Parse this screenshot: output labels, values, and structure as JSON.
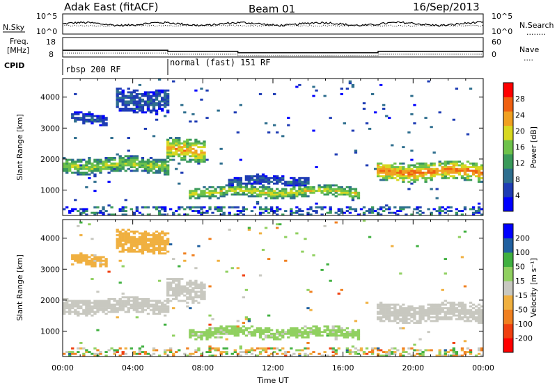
{
  "header": {
    "radar": "Adak East (fitACF)",
    "beam": "Beam 01",
    "date": "16/Sep/2013"
  },
  "noise_panel": {
    "left_label": "N.Sky",
    "right_label": "N.Search",
    "right_legend_line": "........",
    "left_ticks": [
      "10^5",
      "10^0"
    ],
    "right_ticks": [
      "10^5",
      "10^0"
    ]
  },
  "freq_panel": {
    "left_label_1": "Freq.",
    "left_label_2": "[MHz]",
    "left_ticks": [
      "18",
      "8"
    ],
    "right_label": "Nave",
    "right_legend_line": "....",
    "right_ticks": [
      "60",
      "0"
    ]
  },
  "cpid_panel": {
    "label": "CPID",
    "segments": [
      {
        "name": "rbsp 200 RF",
        "start_hour": 0,
        "end_hour": 6
      },
      {
        "name": "normal (fast) 151 RF",
        "start_hour": 6,
        "end_hour": 24
      }
    ]
  },
  "chart_data": [
    {
      "type": "heatmap",
      "parameter": "Power",
      "colorbar_label": "Power [dB]",
      "colorbar_ticks": [
        "28",
        "24",
        "20",
        "16",
        "12",
        "8",
        "4"
      ],
      "colorbar_range": [
        0,
        32
      ],
      "colorbar_colors": [
        "#0000ff",
        "#1e3cb4",
        "#2e6e8e",
        "#3a9a5a",
        "#6ec24a",
        "#d8d820",
        "#f0a020",
        "#f06010",
        "#ff0000"
      ],
      "ylabel": "Slant Range [km]",
      "yticks": [
        "4000",
        "3000",
        "2000",
        "1000"
      ],
      "ylim": [
        180,
        4600
      ],
      "xlim": [
        0,
        24
      ],
      "echo_regions": [
        {
          "t_start": 0.0,
          "t_end": 6.0,
          "r_center": 1800,
          "r_halfwidth": 200,
          "peak_db": 18
        },
        {
          "t_start": 6.0,
          "t_end": 8.2,
          "r_center": 2300,
          "r_halfwidth": 300,
          "peak_db": 24
        },
        {
          "t_start": 7.2,
          "t_end": 17.0,
          "r_center": 950,
          "r_halfwidth": 150,
          "peak_db": 20
        },
        {
          "t_start": 18.0,
          "t_end": 24.0,
          "r_center": 1600,
          "r_halfwidth": 250,
          "peak_db": 26
        },
        {
          "t_start": 0.5,
          "t_end": 2.5,
          "r_center": 3300,
          "r_halfwidth": 150,
          "peak_db": 8
        },
        {
          "t_start": 3.0,
          "t_end": 6.0,
          "r_center": 3900,
          "r_halfwidth": 300,
          "peak_db": 8
        },
        {
          "t_start": 9.5,
          "t_end": 14.0,
          "r_center": 1300,
          "r_halfwidth": 120,
          "peak_db": 8
        }
      ]
    },
    {
      "type": "heatmap",
      "parameter": "Velocity",
      "colorbar_label": "Velocity [m s⁻¹]",
      "colorbar_ticks": [
        "200",
        "100",
        "50",
        "15",
        "-15",
        "-50",
        "-100",
        "-200"
      ],
      "colorbar_range": [
        -250,
        250
      ],
      "colorbar_colors": [
        "#ff0000",
        "#f04010",
        "#f08020",
        "#f0b040",
        "#c8c8c0",
        "#90d060",
        "#40b040",
        "#2060a0",
        "#0000ff"
      ],
      "ylabel": "Slant Range [km]",
      "yticks": [
        "4000",
        "3000",
        "2000",
        "1000"
      ],
      "ylim": [
        180,
        4600
      ],
      "xlim": [
        0,
        24
      ],
      "echo_regions": [
        {
          "t_start": 0.0,
          "t_end": 6.0,
          "r_center": 1800,
          "r_halfwidth": 200,
          "velocity": 0
        },
        {
          "t_start": 6.0,
          "t_end": 8.2,
          "r_center": 2300,
          "r_halfwidth": 300,
          "velocity": 0
        },
        {
          "t_start": 7.2,
          "t_end": 17.0,
          "r_center": 950,
          "r_halfwidth": 150,
          "velocity": 40
        },
        {
          "t_start": 18.0,
          "t_end": 24.0,
          "r_center": 1600,
          "r_halfwidth": 250,
          "velocity": 0
        },
        {
          "t_start": 0.5,
          "t_end": 2.5,
          "r_center": 3300,
          "r_halfwidth": 150,
          "velocity": -40
        },
        {
          "t_start": 3.0,
          "t_end": 6.0,
          "r_center": 3900,
          "r_halfwidth": 300,
          "velocity": -60
        }
      ]
    }
  ],
  "xaxis": {
    "label": "Time UT",
    "ticks": [
      "00:00",
      "04:00",
      "08:00",
      "12:00",
      "16:00",
      "20:00",
      "00:00"
    ]
  }
}
